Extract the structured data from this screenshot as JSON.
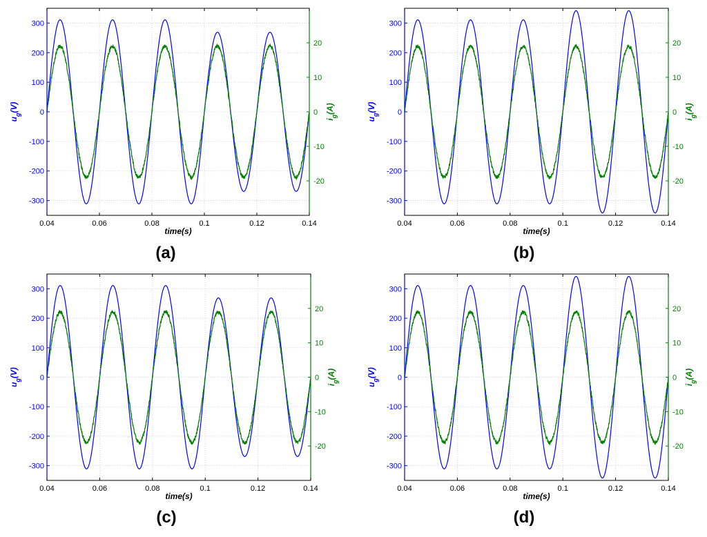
{
  "figure": {
    "panels": [
      "a",
      "b",
      "c",
      "d"
    ]
  },
  "colors": {
    "voltage": "#0000FF",
    "current": "#008000",
    "grid": "#C8C8FF",
    "frame": "#000000"
  },
  "chart_data": [
    {
      "id": "a",
      "panel_label": "(a)",
      "type": "line",
      "xlabel": "time(s)",
      "ylabel_left": "u_g(V)",
      "ylabel_right": "i_g(A)",
      "xlim": [
        0.04,
        0.14
      ],
      "ylim_left": [
        -350,
        350
      ],
      "ylim_right": [
        -30,
        30
      ],
      "x_ticks": [
        "0.04",
        "0.06",
        "0.08",
        "0.1",
        "0.12",
        "0.14"
      ],
      "y_ticks_left": [
        "300",
        "200",
        "100",
        "0",
        "-100",
        "-200",
        "-300"
      ],
      "y_ticks_right": [
        "20",
        "10",
        "0",
        "-10",
        "-20"
      ],
      "grid": true,
      "frequency_hz": 50,
      "series": [
        {
          "name": "u_g",
          "axis": "left",
          "color": "#0000FF",
          "cycles": [
            {
              "t0": 0.04,
              "pos": 311,
              "neg": 311
            },
            {
              "t0": 0.06,
              "pos": 311,
              "neg": 311
            },
            {
              "t0": 0.08,
              "pos": 311,
              "neg": 311
            },
            {
              "t0": 0.1,
              "pos": 269,
              "neg": 269
            },
            {
              "t0": 0.12,
              "pos": 269,
              "neg": 269
            }
          ]
        },
        {
          "name": "i_g",
          "axis": "right",
          "color": "#008000",
          "amplitude": 19,
          "noise": true
        }
      ]
    },
    {
      "id": "b",
      "panel_label": "(b)",
      "type": "line",
      "xlabel": "time(s)",
      "ylabel_left": "u_g(V)",
      "ylabel_right": "i_g(A)",
      "xlim": [
        0.04,
        0.14
      ],
      "ylim_left": [
        -350,
        350
      ],
      "ylim_right": [
        -30,
        30
      ],
      "x_ticks": [
        "0.04",
        "0.06",
        "0.08",
        "0.1",
        "0.12",
        "0.14"
      ],
      "y_ticks_left": [
        "300",
        "200",
        "100",
        "0",
        "-100",
        "-200",
        "-300"
      ],
      "y_ticks_right": [
        "20",
        "10",
        "0",
        "-10",
        "-20"
      ],
      "grid": true,
      "frequency_hz": 50,
      "series": [
        {
          "name": "u_g",
          "axis": "left",
          "color": "#0000FF",
          "cycles": [
            {
              "t0": 0.04,
              "pos": 311,
              "neg": 311
            },
            {
              "t0": 0.06,
              "pos": 311,
              "neg": 311
            },
            {
              "t0": 0.08,
              "pos": 311,
              "neg": 311
            },
            {
              "t0": 0.1,
              "pos": 342,
              "neg": 342
            },
            {
              "t0": 0.12,
              "pos": 342,
              "neg": 342
            }
          ]
        },
        {
          "name": "i_g",
          "axis": "right",
          "color": "#008000",
          "amplitude": 19,
          "noise": true
        }
      ]
    },
    {
      "id": "c",
      "panel_label": "(c)",
      "type": "line",
      "xlabel": "time(s)",
      "ylabel_left": "u_g(V)",
      "ylabel_right": "i_g(A)",
      "xlim": [
        0.04,
        0.14
      ],
      "ylim_left": [
        -350,
        350
      ],
      "ylim_right": [
        -30,
        30
      ],
      "x_ticks": [
        "0.04",
        "0.06",
        "0.08",
        "0.1",
        "0.12",
        "0.14"
      ],
      "y_ticks_left": [
        "300",
        "200",
        "100",
        "0",
        "-100",
        "-200",
        "-300"
      ],
      "y_ticks_right": [
        "20",
        "10",
        "0",
        "-10",
        "-20"
      ],
      "grid": true,
      "frequency_hz": 50,
      "series": [
        {
          "name": "u_g",
          "axis": "left",
          "color": "#0000FF",
          "cycles": [
            {
              "t0": 0.04,
              "pos": 311,
              "neg": 311
            },
            {
              "t0": 0.06,
              "pos": 311,
              "neg": 311
            },
            {
              "t0": 0.08,
              "pos": 311,
              "neg": 311
            },
            {
              "t0": 0.1,
              "pos": 269,
              "neg": 269
            },
            {
              "t0": 0.12,
              "pos": 269,
              "neg": 269
            }
          ]
        },
        {
          "name": "i_g",
          "axis": "right",
          "color": "#008000",
          "amplitude": 19,
          "noise": true
        }
      ]
    },
    {
      "id": "d",
      "panel_label": "(d)",
      "type": "line",
      "xlabel": "time(s)",
      "ylabel_left": "u_g(V)",
      "ylabel_right": "i_g(A)",
      "xlim": [
        0.04,
        0.14
      ],
      "ylim_left": [
        -350,
        350
      ],
      "ylim_right": [
        -30,
        30
      ],
      "x_ticks": [
        "0.04",
        "0.06",
        "0.08",
        "0.1",
        "0.12",
        "0.14"
      ],
      "y_ticks_left": [
        "300",
        "200",
        "100",
        "0",
        "-100",
        "-200",
        "-300"
      ],
      "y_ticks_right": [
        "20",
        "10",
        "0",
        "-10",
        "-20"
      ],
      "grid": true,
      "frequency_hz": 50,
      "series": [
        {
          "name": "u_g",
          "axis": "left",
          "color": "#0000FF",
          "cycles": [
            {
              "t0": 0.04,
              "pos": 311,
              "neg": 311
            },
            {
              "t0": 0.06,
              "pos": 311,
              "neg": 311
            },
            {
              "t0": 0.08,
              "pos": 311,
              "neg": 311
            },
            {
              "t0": 0.1,
              "pos": 342,
              "neg": 342
            },
            {
              "t0": 0.12,
              "pos": 342,
              "neg": 342
            }
          ]
        },
        {
          "name": "i_g",
          "axis": "right",
          "color": "#008000",
          "amplitude": 19,
          "noise": true
        }
      ]
    }
  ]
}
